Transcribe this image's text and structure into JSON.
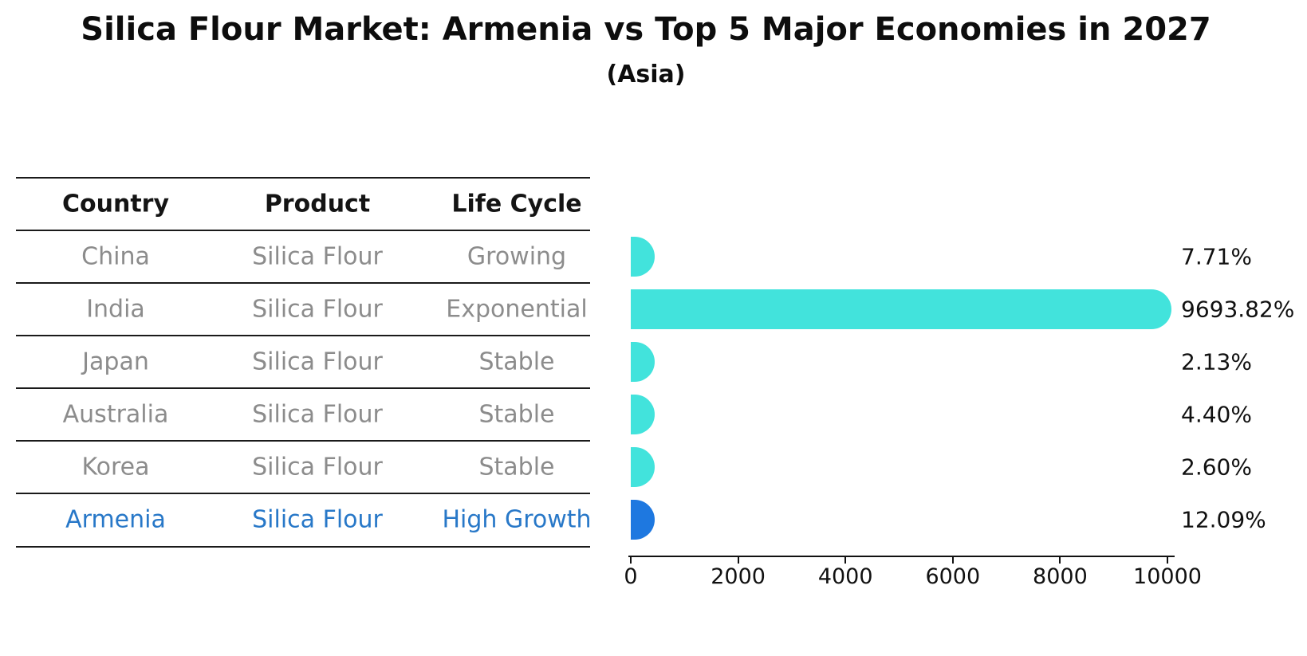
{
  "title": "Silica Flour Market: Armenia vs Top 5 Major Economies in 2027",
  "subtitle": "(Asia)",
  "table": {
    "headers": [
      "Country",
      "Product",
      "Life Cycle"
    ],
    "rows": [
      {
        "country": "China",
        "product": "Silica Flour",
        "life_cycle": "Growing",
        "highlight": false
      },
      {
        "country": "India",
        "product": "Silica Flour",
        "life_cycle": "Exponential",
        "highlight": false
      },
      {
        "country": "Japan",
        "product": "Silica Flour",
        "life_cycle": "Stable",
        "highlight": false
      },
      {
        "country": "Australia",
        "product": "Silica Flour",
        "life_cycle": "Stable",
        "highlight": false
      },
      {
        "country": "Korea",
        "product": "Silica Flour",
        "life_cycle": "Stable",
        "highlight": false
      },
      {
        "country": "Armenia",
        "product": "Silica Flour",
        "life_cycle": "High Growth",
        "highlight": true
      }
    ]
  },
  "chart_data": {
    "type": "bar",
    "orientation": "horizontal",
    "title": "Silica Flour Market: Armenia vs Top 5 Major Economies in 2027 (Asia)",
    "categories": [
      "China",
      "India",
      "Japan",
      "Australia",
      "Korea",
      "Armenia"
    ],
    "values": [
      7.71,
      9693.82,
      2.13,
      4.4,
      2.6,
      12.09
    ],
    "value_labels": [
      "7.71%",
      "9693.82%",
      "2.13%",
      "4.40%",
      "2.60%",
      "12.09%"
    ],
    "xlabel": "",
    "ylabel": "",
    "xlim": [
      0,
      10000
    ],
    "x_ticks": [
      0,
      2000,
      4000,
      6000,
      8000,
      10000
    ],
    "grid": false,
    "legend": false,
    "highlight_index": 5
  },
  "colors": {
    "bar": "#42e3dc",
    "highlight_bar": "#1e78e0",
    "highlight_text": "#2878c8",
    "row_text": "#8c8c8c",
    "header_text": "#141414",
    "axis": "#111111"
  }
}
